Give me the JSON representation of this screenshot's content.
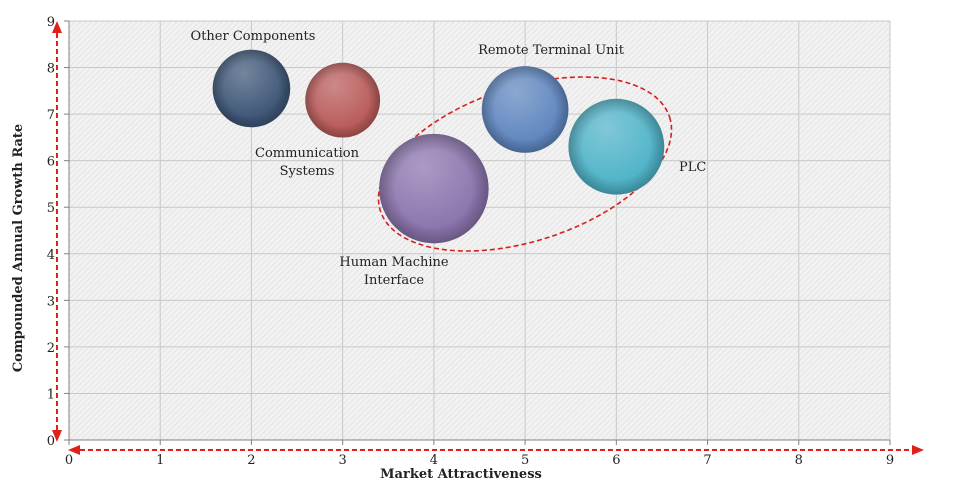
{
  "chart_data": {
    "type": "bubble",
    "xlabel": "Market Attractiveness",
    "ylabel": "Compounded  Annual  Growth Rate",
    "xlim": [
      0,
      9
    ],
    "ylim": [
      0,
      9
    ],
    "x_ticks": [
      "0",
      "1",
      "2",
      "3",
      "4",
      "5",
      "6",
      "7",
      "8",
      "9"
    ],
    "y_ticks": [
      "0",
      "1",
      "2",
      "3",
      "4",
      "5",
      "6",
      "7",
      "8",
      "9"
    ],
    "grid": true,
    "points": [
      {
        "name": "Other Components",
        "lines": [
          "Other Components"
        ],
        "x": 2,
        "y": 7.55,
        "size": 0.85,
        "color": "#3e5677"
      },
      {
        "name": "Communication Systems",
        "lines": [
          "Communication",
          "Systems"
        ],
        "x": 3,
        "y": 7.3,
        "size": 0.82,
        "color": "#b85b59"
      },
      {
        "name": "Remote Terminal Unit",
        "lines": [
          "Remote Terminal Unit"
        ],
        "x": 5,
        "y": 7.1,
        "size": 0.95,
        "color": "#5f86bf"
      },
      {
        "name": "PLC",
        "lines": [
          "PLC"
        ],
        "x": 6,
        "y": 6.3,
        "size": 1.05,
        "color": "#4fb3c8"
      },
      {
        "name": "Human Machine Interface",
        "lines": [
          "Human Machine",
          "Interface"
        ],
        "x": 4,
        "y": 5.4,
        "size": 1.2,
        "color": "#8a74ad"
      }
    ],
    "highlight_group": [
      "Human Machine Interface",
      "Remote Terminal Unit",
      "PLC"
    ],
    "colors": {
      "plot_bg": "#f2f2f2",
      "hatch": "#dcdcdc",
      "grid": "#c8c8c8",
      "axis_arrow": "#e0201a",
      "highlight": "#d62020"
    }
  }
}
